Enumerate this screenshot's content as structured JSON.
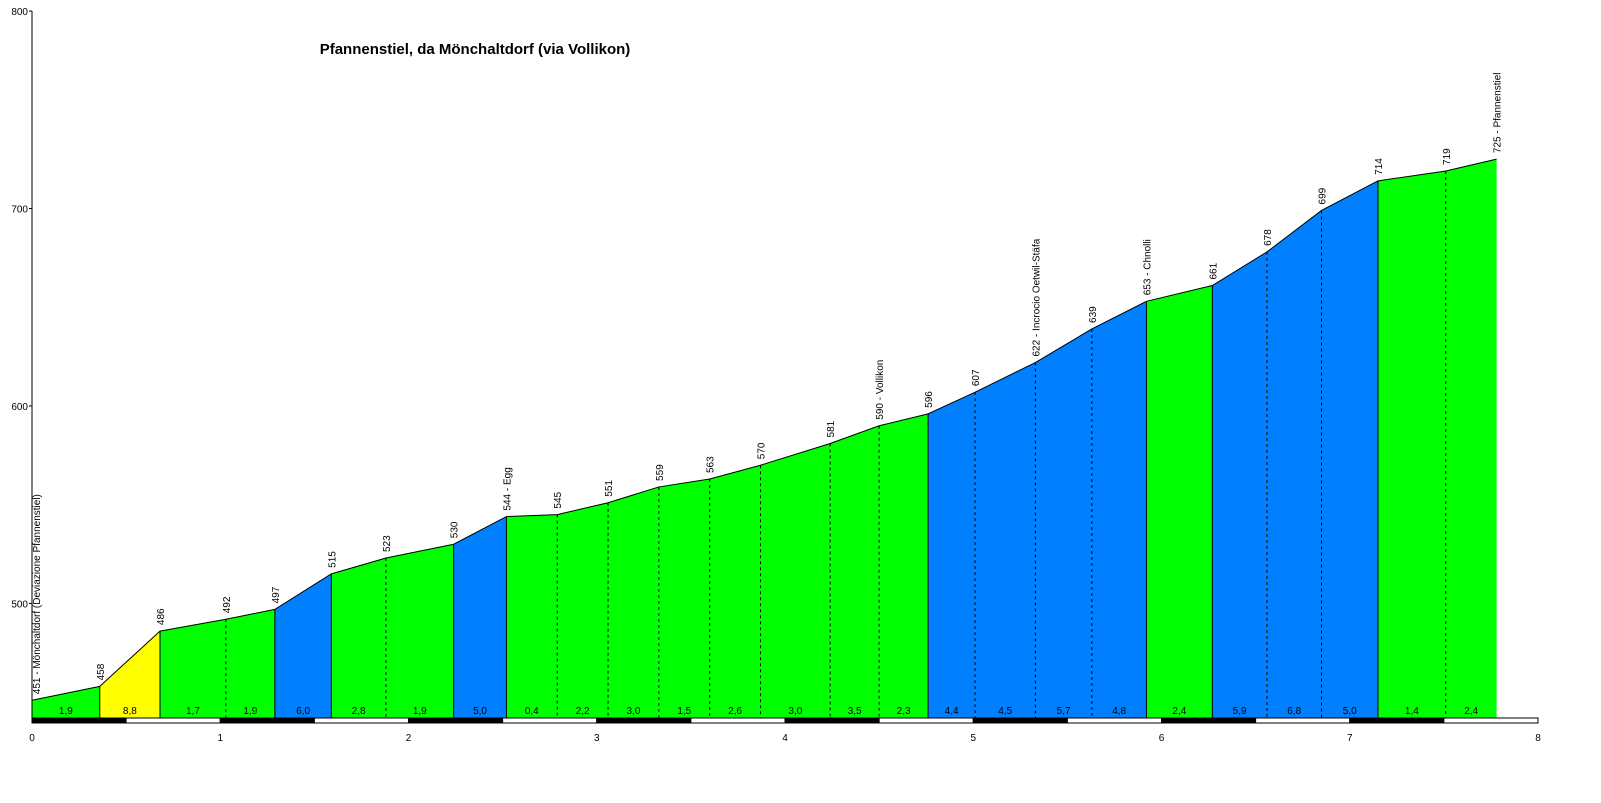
{
  "chart_data": {
    "type": "area",
    "title": "Pfannenstiel, da Mönchaltdorf (via Vollikon)",
    "xlabel": "",
    "ylabel": "",
    "xlim": [
      0,
      8
    ],
    "ylim": [
      442,
      800
    ],
    "x_ticks": [
      0,
      1,
      2,
      3,
      4,
      5,
      6,
      7,
      8
    ],
    "y_ticks": [
      500,
      600,
      700,
      800
    ],
    "grid": false,
    "colors": {
      "green": "#00ff00",
      "yellow": "#ffff00",
      "blue": "#0080ff",
      "outline": "#000000"
    },
    "points": [
      {
        "x": 0.0,
        "y": 451,
        "label": "451 - Mönchaltdorf (Deviazione Pfannenstiel)"
      },
      {
        "x": 0.36,
        "y": 458,
        "label": "458"
      },
      {
        "x": 0.68,
        "y": 486,
        "label": "486"
      },
      {
        "x": 1.03,
        "y": 492,
        "label": "492"
      },
      {
        "x": 1.29,
        "y": 497,
        "label": "497"
      },
      {
        "x": 1.59,
        "y": 515,
        "label": "515"
      },
      {
        "x": 1.88,
        "y": 523,
        "label": "523"
      },
      {
        "x": 2.24,
        "y": 530,
        "label": "530"
      },
      {
        "x": 2.52,
        "y": 544,
        "label": "544 - Egg"
      },
      {
        "x": 2.79,
        "y": 545,
        "label": "545"
      },
      {
        "x": 3.06,
        "y": 551,
        "label": "551"
      },
      {
        "x": 3.33,
        "y": 559,
        "label": "559"
      },
      {
        "x": 3.6,
        "y": 563,
        "label": "563"
      },
      {
        "x": 3.87,
        "y": 570,
        "label": "570"
      },
      {
        "x": 4.24,
        "y": 581,
        "label": "581"
      },
      {
        "x": 4.5,
        "y": 590,
        "label": "590 - Vollikon"
      },
      {
        "x": 4.76,
        "y": 596,
        "label": "596"
      },
      {
        "x": 5.01,
        "y": 607,
        "label": "607"
      },
      {
        "x": 5.33,
        "y": 622,
        "label": "622 - Incrocio Oetwil-Stäfa"
      },
      {
        "x": 5.63,
        "y": 639,
        "label": "639"
      },
      {
        "x": 5.92,
        "y": 653,
        "label": "653 - Chnolli"
      },
      {
        "x": 6.27,
        "y": 661,
        "label": "661"
      },
      {
        "x": 6.56,
        "y": 678,
        "label": "678"
      },
      {
        "x": 6.85,
        "y": 699,
        "label": "699"
      },
      {
        "x": 7.15,
        "y": 714,
        "label": "714"
      },
      {
        "x": 7.51,
        "y": 719,
        "label": "719"
      },
      {
        "x": 7.78,
        "y": 725,
        "label": "725 - Pfannenstiel"
      }
    ],
    "segments": [
      {
        "gradient": "1,9",
        "color": "green"
      },
      {
        "gradient": "8,8",
        "color": "yellow"
      },
      {
        "gradient": "1,7",
        "color": "green"
      },
      {
        "gradient": "1,9",
        "color": "green"
      },
      {
        "gradient": "6,0",
        "color": "blue"
      },
      {
        "gradient": "2,8",
        "color": "green"
      },
      {
        "gradient": "1,9",
        "color": "green"
      },
      {
        "gradient": "5,0",
        "color": "blue"
      },
      {
        "gradient": "0,4",
        "color": "green"
      },
      {
        "gradient": "2,2",
        "color": "green"
      },
      {
        "gradient": "3,0",
        "color": "green"
      },
      {
        "gradient": "1,5",
        "color": "green"
      },
      {
        "gradient": "2,6",
        "color": "green"
      },
      {
        "gradient": "3,0",
        "color": "green"
      },
      {
        "gradient": "3,5",
        "color": "green"
      },
      {
        "gradient": "2,3",
        "color": "green"
      },
      {
        "gradient": "4,4",
        "color": "blue"
      },
      {
        "gradient": "4,5",
        "color": "blue"
      },
      {
        "gradient": "5,7",
        "color": "blue"
      },
      {
        "gradient": "4,8",
        "color": "blue"
      },
      {
        "gradient": "2,4",
        "color": "green"
      },
      {
        "gradient": "5,9",
        "color": "blue"
      },
      {
        "gradient": "6,8",
        "color": "blue"
      },
      {
        "gradient": "5,0",
        "color": "blue"
      },
      {
        "gradient": "1,4",
        "color": "green"
      },
      {
        "gradient": "2,4",
        "color": "green"
      }
    ]
  }
}
